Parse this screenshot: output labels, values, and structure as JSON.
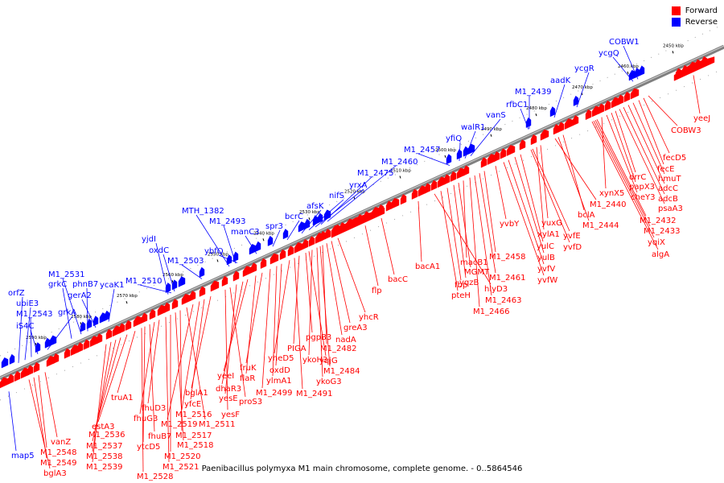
{
  "legend": [
    {
      "label": "Forward",
      "color": "#ff0000"
    },
    {
      "label": "Reverse",
      "color": "#0000ff"
    }
  ],
  "caption": "Paenibacillus polymyxa M1 main chromosome, complete genome. - 0..5864546",
  "colors": {
    "forward": "#ff0000",
    "reverse": "#0000ff",
    "axis": "#808080"
  },
  "scale_ticks": [
    "2590 kbp",
    "2580 kbp",
    "2570 kbp",
    "2560 kbp",
    "2550 kbp",
    "2540 kbp",
    "2530 kbp",
    "2520 kbp",
    "2510 kbp",
    "2500 kbp",
    "2490 kbp",
    "2480 kbp",
    "2470 kbp",
    "2460 kbp",
    "2450 kbp"
  ],
  "reverse_genes": [
    "orfZ",
    "ubiE3",
    "M1_2543",
    "iS4C",
    "grkA",
    "grkC",
    "M1_2531",
    "phnB7",
    "gerA2",
    "ycaK1",
    "M1_2510",
    "yjdI",
    "oxdC",
    "M1_2503",
    "MTH_1382",
    "M1_2493",
    "ybfQ",
    "manC3",
    "spr3",
    "bcrC",
    "afsK",
    "nifS",
    "yrxA",
    "M1_2475",
    "M1_2460",
    "M1_2457",
    "yfiQ",
    "walR1",
    "vanS",
    "rfbC1",
    "M1_2439",
    "aadK",
    "ycgR",
    "ycgQ",
    "COBW1",
    "map5"
  ],
  "forward_genes": [
    "yeeJ",
    "COBW3",
    "fecD5",
    "fecE",
    "hmuT",
    "adcC",
    "adcB",
    "psaA3",
    "drrC",
    "papX3",
    "cheY3",
    "xynX5",
    "M1_2432",
    "M1_2433",
    "yqiX",
    "algA",
    "bclA",
    "M1_2444",
    "M1_2440",
    "yuxG",
    "xylA1",
    "yvfE",
    "yvfD",
    "yulC",
    "yulB",
    "yvfV",
    "yvfW",
    "yvbY",
    "M1_2458",
    "M1_2461",
    "M1_2463",
    "M1_2466",
    "macB1",
    "MGMT",
    "yqzB",
    "fbp",
    "pteH",
    "hlyD3",
    "bacA1",
    "bacC",
    "flp",
    "yhcR",
    "greA3",
    "nadA",
    "M1_2482",
    "M1_2484",
    "ykoG3",
    "ykoH3",
    "yqjG",
    "pgpB3",
    "PIGA",
    "M1_2491",
    "yheD5",
    "oxdD",
    "ylmA1",
    "M1_2499",
    "fruK",
    "flaR",
    "yeeI",
    "dhaR3",
    "yesE",
    "proS3",
    "yesF",
    "bglA1",
    "yfcE",
    "M1_2516",
    "M1_2519",
    "M1_2511",
    "M1_2517",
    "M1_2518",
    "M1_2520",
    "M1_2521",
    "fhuD3",
    "fhuG3",
    "fhuB7",
    "ytcD5",
    "M1_2528",
    "truA1",
    "estA3",
    "M1_2536",
    "M1_2537",
    "M1_2538",
    "M1_2539",
    "vanZ",
    "M1_2548",
    "M1_2549",
    "bglA3"
  ]
}
